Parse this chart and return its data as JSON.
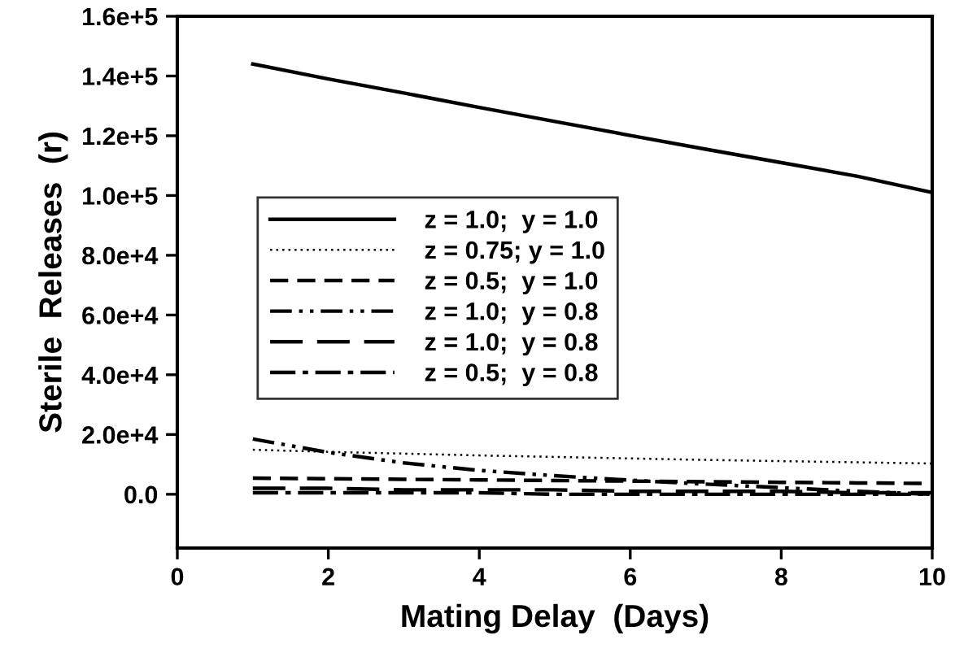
{
  "chart_data": {
    "type": "line",
    "xlabel": "Mating Delay  (Days)",
    "ylabel": "Sterile  Releases  (r)",
    "x": [
      1,
      2,
      3,
      4,
      5,
      6,
      7,
      8,
      9,
      10
    ],
    "xlim": [
      0,
      10
    ],
    "xticks": [
      0,
      2,
      4,
      6,
      8,
      10
    ],
    "ylim": [
      -18000,
      160000
    ],
    "yticks": [
      {
        "value": 0,
        "label": "0.0"
      },
      {
        "value": 20000,
        "label": "2.0e+4"
      },
      {
        "value": 40000,
        "label": "4.0e+4"
      },
      {
        "value": 60000,
        "label": "6.0e+4"
      },
      {
        "value": 80000,
        "label": "8.0e+4"
      },
      {
        "value": 100000,
        "label": "1.0e+5"
      },
      {
        "value": 120000,
        "label": "1.2e+5"
      },
      {
        "value": 140000,
        "label": "1.4e+5"
      },
      {
        "value": 160000,
        "label": "1.6e+5"
      }
    ],
    "grid": false,
    "legend": "left",
    "marker": "none",
    "series": [
      {
        "name": "z = 1.0;  y = 1.0",
        "color": "#000000",
        "line_style": "solid",
        "values": [
          144000,
          139000,
          134300,
          129500,
          124800,
          120100,
          115500,
          111000,
          106500,
          101000
        ]
      },
      {
        "name": "z = 0.75; y = 1.0",
        "color": "#000000",
        "line_style": "dotted",
        "values": [
          14900,
          14200,
          13600,
          13000,
          12500,
          12000,
          11500,
          11100,
          10700,
          10300
        ]
      },
      {
        "name": "z = 0.5;  y = 1.0",
        "color": "#000000",
        "line_style": "dashed",
        "values": [
          5400,
          5200,
          5000,
          4800,
          4600,
          4400,
          4200,
          4000,
          3800,
          3600
        ]
      },
      {
        "name": "z = 1.0;  y = 0.8",
        "color": "#000000",
        "line_style": "dashdotdot",
        "values": [
          18500,
          14000,
          10500,
          8000,
          6200,
          4700,
          3400,
          2200,
          1000,
          0
        ]
      },
      {
        "name": "z = 1.0;  y = 0.8",
        "color": "#000000",
        "line_style": "longdash",
        "values": [
          2000,
          2000,
          1500,
          1500,
          1500,
          1000,
          1000,
          1000,
          500,
          500
        ]
      },
      {
        "name": "z = 0.5;  y = 0.8",
        "color": "#000000",
        "line_style": "dashdot",
        "values": [
          500,
          500,
          500,
          500,
          0,
          0,
          0,
          0,
          0,
          0
        ]
      }
    ]
  }
}
